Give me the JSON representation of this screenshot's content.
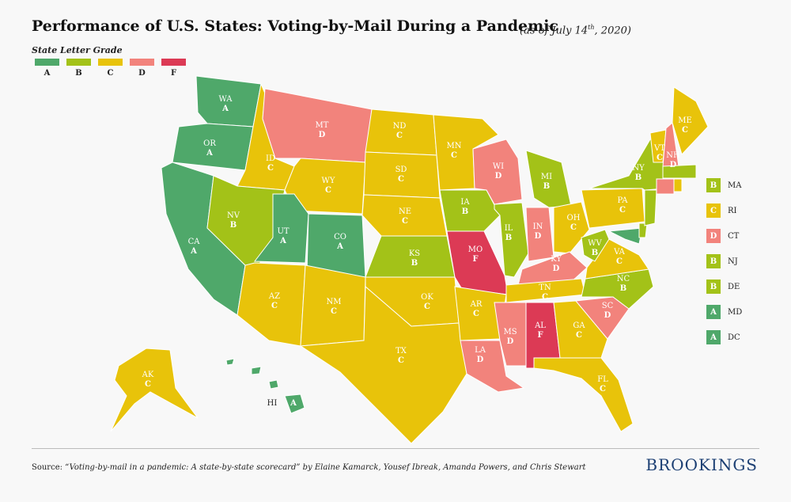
{
  "title": "Performance of U.S. States: Voting-by-Mail During a Pandemic",
  "subtitle_prefix": "(as of July 14",
  "subtitle_sup": "th",
  "subtitle_suffix": ", 2020)",
  "legend": {
    "title": "State Letter Grade",
    "items": [
      {
        "grade": "A",
        "color": "#4fa86a"
      },
      {
        "grade": "B",
        "color": "#a3c218"
      },
      {
        "grade": "C",
        "color": "#e8c30a"
      },
      {
        "grade": "D",
        "color": "#f2837c"
      },
      {
        "grade": "F",
        "color": "#dc3a55"
      }
    ]
  },
  "grade_colors": {
    "A": "#4fa86a",
    "B": "#a3c218",
    "C": "#e8c30a",
    "D": "#f2837c",
    "F": "#dc3a55"
  },
  "states": [
    {
      "code": "WA",
      "grade": "A"
    },
    {
      "code": "OR",
      "grade": "A"
    },
    {
      "code": "CA",
      "grade": "A"
    },
    {
      "code": "ID",
      "grade": "C"
    },
    {
      "code": "NV",
      "grade": "B"
    },
    {
      "code": "MT",
      "grade": "D"
    },
    {
      "code": "WY",
      "grade": "C"
    },
    {
      "code": "UT",
      "grade": "A"
    },
    {
      "code": "CO",
      "grade": "A"
    },
    {
      "code": "AZ",
      "grade": "C"
    },
    {
      "code": "NM",
      "grade": "C"
    },
    {
      "code": "ND",
      "grade": "C"
    },
    {
      "code": "SD",
      "grade": "C"
    },
    {
      "code": "NE",
      "grade": "C"
    },
    {
      "code": "KS",
      "grade": "B"
    },
    {
      "code": "OK",
      "grade": "C"
    },
    {
      "code": "TX",
      "grade": "C"
    },
    {
      "code": "MN",
      "grade": "C"
    },
    {
      "code": "IA",
      "grade": "B"
    },
    {
      "code": "MO",
      "grade": "F"
    },
    {
      "code": "AR",
      "grade": "C"
    },
    {
      "code": "LA",
      "grade": "D"
    },
    {
      "code": "WI",
      "grade": "D"
    },
    {
      "code": "IL",
      "grade": "B"
    },
    {
      "code": "MI",
      "grade": "B"
    },
    {
      "code": "IN",
      "grade": "D"
    },
    {
      "code": "OH",
      "grade": "C"
    },
    {
      "code": "KY",
      "grade": "D"
    },
    {
      "code": "TN",
      "grade": "C"
    },
    {
      "code": "MS",
      "grade": "D"
    },
    {
      "code": "AL",
      "grade": "F"
    },
    {
      "code": "GA",
      "grade": "C"
    },
    {
      "code": "FL",
      "grade": "C"
    },
    {
      "code": "SC",
      "grade": "D"
    },
    {
      "code": "NC",
      "grade": "B"
    },
    {
      "code": "VA",
      "grade": "C"
    },
    {
      "code": "WV",
      "grade": "B"
    },
    {
      "code": "PA",
      "grade": "C"
    },
    {
      "code": "NY",
      "grade": "B"
    },
    {
      "code": "VT",
      "grade": "C"
    },
    {
      "code": "NH",
      "grade": "D"
    },
    {
      "code": "ME",
      "grade": "C"
    },
    {
      "code": "AK",
      "grade": "C"
    },
    {
      "code": "HI",
      "grade": "A"
    }
  ],
  "northeast_list": [
    {
      "code": "MA",
      "grade": "B"
    },
    {
      "code": "RI",
      "grade": "C"
    },
    {
      "code": "CT",
      "grade": "D"
    },
    {
      "code": "NJ",
      "grade": "B"
    },
    {
      "code": "DE",
      "grade": "B"
    },
    {
      "code": "MD",
      "grade": "A"
    },
    {
      "code": "DC",
      "grade": "A"
    }
  ],
  "source": {
    "prefix": "Source: ",
    "italic": "“Voting-by-mail in a pandemic: A state-by-state scorecard” by Elaine Kamarck, Yousef Ibreak, Amanda Powers, and Chris Stewart"
  },
  "brand": "BROOKINGS"
}
